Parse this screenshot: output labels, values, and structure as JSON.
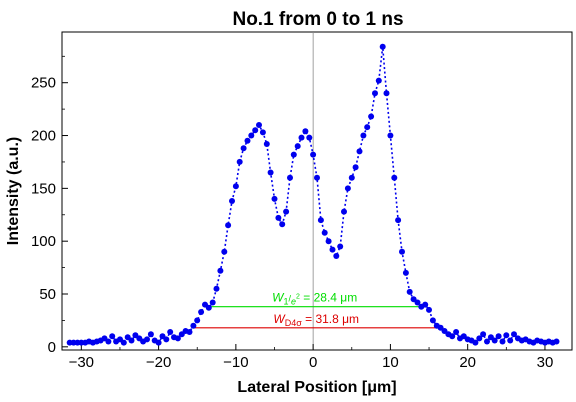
{
  "chart_data": {
    "type": "scatter",
    "title": "No.1  from 0 to 1 ns",
    "xlabel": "Lateral Position [μm]",
    "ylabel": "Intensity (a.u.)",
    "xlim": [
      -32.5,
      33.5
    ],
    "ylim": [
      -3,
      298
    ],
    "x_ticks": [
      -30,
      -20,
      -10,
      0,
      10,
      20,
      30
    ],
    "x_tick_labels": [
      "−30",
      "−20",
      "−10",
      "0",
      "10",
      "20",
      "30"
    ],
    "y_ticks": [
      0,
      50,
      100,
      150,
      200,
      250
    ],
    "y_tick_labels": [
      "0",
      "50",
      "100",
      "150",
      "200",
      "250"
    ],
    "colors": {
      "points": "#0000ee",
      "width_1e2": "#00dd00",
      "width_d4s": "#dd0000",
      "center_line": "#888888"
    },
    "series": [
      {
        "marker": "dot",
        "line": "dotted",
        "x": [
          -31.5,
          -31.0,
          -30.5,
          -30.0,
          -29.5,
          -29.0,
          -28.5,
          -28.0,
          -27.5,
          -27.0,
          -26.5,
          -26.0,
          -25.5,
          -25.0,
          -24.5,
          -24.0,
          -23.5,
          -23.0,
          -22.5,
          -22.0,
          -21.5,
          -21.0,
          -20.5,
          -20.0,
          -19.5,
          -19.0,
          -18.5,
          -18.0,
          -17.5,
          -17.0,
          -16.5,
          -16.0,
          -15.5,
          -15.0,
          -14.5,
          -14.0,
          -13.5,
          -13.0,
          -12.5,
          -12.0,
          -11.5,
          -11.0,
          -10.5,
          -10.0,
          -9.5,
          -9.0,
          -8.5,
          -8.0,
          -7.5,
          -7.0,
          -6.5,
          -6.0,
          -5.5,
          -5.0,
          -4.5,
          -4.0,
          -3.5,
          -3.0,
          -2.5,
          -2.0,
          -1.5,
          -1.0,
          -0.5,
          0.0,
          0.5,
          1.0,
          1.5,
          2.0,
          2.5,
          3.0,
          3.5,
          4.0,
          4.5,
          5.0,
          5.5,
          6.0,
          6.5,
          7.0,
          7.5,
          8.0,
          8.5,
          9.0,
          9.5,
          10.0,
          10.5,
          11.0,
          11.5,
          12.0,
          12.5,
          13.0,
          13.5,
          14.0,
          14.5,
          15.0,
          15.5,
          16.0,
          16.5,
          17.0,
          17.5,
          18.0,
          18.5,
          19.0,
          19.5,
          20.0,
          20.5,
          21.0,
          21.5,
          22.0,
          22.5,
          23.0,
          23.5,
          24.0,
          24.5,
          25.0,
          25.5,
          26.0,
          26.5,
          27.0,
          27.5,
          28.0,
          28.5,
          29.0,
          29.5,
          30.0,
          30.5,
          31.0,
          31.5
        ],
        "y": [
          4,
          4,
          4,
          4,
          4,
          5,
          4,
          5,
          6,
          8,
          5,
          10,
          5,
          7,
          4,
          9,
          6,
          11,
          8,
          5,
          7,
          12,
          6,
          4,
          10,
          7,
          14,
          9,
          8,
          12,
          15,
          14,
          20,
          25,
          33,
          40,
          37,
          42,
          55,
          72,
          90,
          115,
          138,
          152,
          175,
          188,
          195,
          200,
          205,
          210,
          203,
          192,
          165,
          140,
          122,
          116,
          128,
          160,
          182,
          190,
          198,
          204,
          198,
          182,
          160,
          120,
          108,
          100,
          92,
          86,
          95,
          128,
          150,
          160,
          170,
          185,
          200,
          208,
          218,
          240,
          252,
          284,
          240,
          200,
          160,
          120,
          90,
          70,
          52,
          45,
          42,
          38,
          40,
          35,
          25,
          20,
          18,
          15,
          12,
          10,
          14,
          8,
          10,
          7,
          6,
          4,
          8,
          12,
          5,
          9,
          6,
          10,
          5,
          11,
          6,
          12,
          8,
          6,
          7,
          5,
          4,
          6,
          5,
          4,
          5,
          4,
          5
        ]
      }
    ],
    "annotations": [
      {
        "label": "W1/e² = 28.4 μm",
        "label_main": "W",
        "label_sub": "1",
        "label_sup": "2",
        "label_value": " = 28.4 μm",
        "x_start": -14.0,
        "x_end": 14.4,
        "y": 38
      },
      {
        "label": "WD4σ = 31.8 μm",
        "label_main": "W",
        "label_sub": "D4σ",
        "label_value": " = 31.8 μm",
        "x_start": -15.5,
        "x_end": 16.3,
        "y": 18
      }
    ]
  }
}
